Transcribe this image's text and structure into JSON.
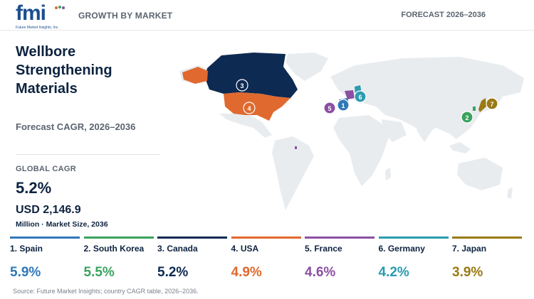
{
  "brand": {
    "logo_text": "fmi",
    "tagline": "Future Market Insights, Inc."
  },
  "header": {
    "left": "GROWTH BY MARKET",
    "right": "FORECAST 2026–2036"
  },
  "title": "Wellbore Strengthening Materials",
  "subtitle": "Forecast CAGR, 2026–2036",
  "global": {
    "label": "GLOBAL CAGR",
    "cagr": "5.2%",
    "market_size": "USD 2,146.9",
    "market_note": "Million · Market Size, 2036"
  },
  "chart_data": {
    "type": "table",
    "title": "Wellbore Strengthening Materials",
    "subtitle": "Forecast CAGR, 2026–2036",
    "global_cagr": 5.2,
    "market_size_2036_usd_million": 2146.9,
    "rows": [
      {
        "rank": 1,
        "country": "Spain",
        "label": "1. Spain",
        "cagr": 5.9,
        "cagr_text": "5.9%",
        "color": "#2f78b8"
      },
      {
        "rank": 2,
        "country": "South Korea",
        "label": "2. South Korea",
        "cagr": 5.5,
        "cagr_text": "5.5%",
        "color": "#3aa35f"
      },
      {
        "rank": 3,
        "country": "Canada",
        "label": "3. Canada",
        "cagr": 5.2,
        "cagr_text": "5.2%",
        "color": "#0d2a52"
      },
      {
        "rank": 4,
        "country": "USA",
        "label": "4. USA",
        "cagr": 4.9,
        "cagr_text": "4.9%",
        "color": "#e0692f"
      },
      {
        "rank": 5,
        "country": "France",
        "label": "5. France",
        "cagr": 4.6,
        "cagr_text": "4.6%",
        "color": "#8a4fa3"
      },
      {
        "rank": 6,
        "country": "Germany",
        "label": "6. Germany",
        "cagr": 4.2,
        "cagr_text": "4.2%",
        "color": "#2a9bb0"
      },
      {
        "rank": 7,
        "country": "Japan",
        "label": "7. Japan",
        "cagr": 3.9,
        "cagr_text": "3.9%",
        "color": "#9a7a14"
      }
    ]
  },
  "map": {
    "land_color": "#e9ecef",
    "markers": [
      {
        "id": "canada",
        "text": "3",
        "color": "#0d2a52"
      },
      {
        "id": "usa",
        "text": "4",
        "color": "#e0692f"
      },
      {
        "id": "spain",
        "text": "1",
        "color": "#2f78b8"
      },
      {
        "id": "france",
        "text": "5",
        "color": "#8a4fa3"
      },
      {
        "id": "germany",
        "text": "6",
        "color": "#2a9bb0"
      },
      {
        "id": "south_korea",
        "text": "2",
        "color": "#3aa35f"
      },
      {
        "id": "japan",
        "text": "7",
        "color": "#9a7a14"
      }
    ]
  },
  "source": "Source: Future Market Insights; country CAGR table, 2026–2036."
}
